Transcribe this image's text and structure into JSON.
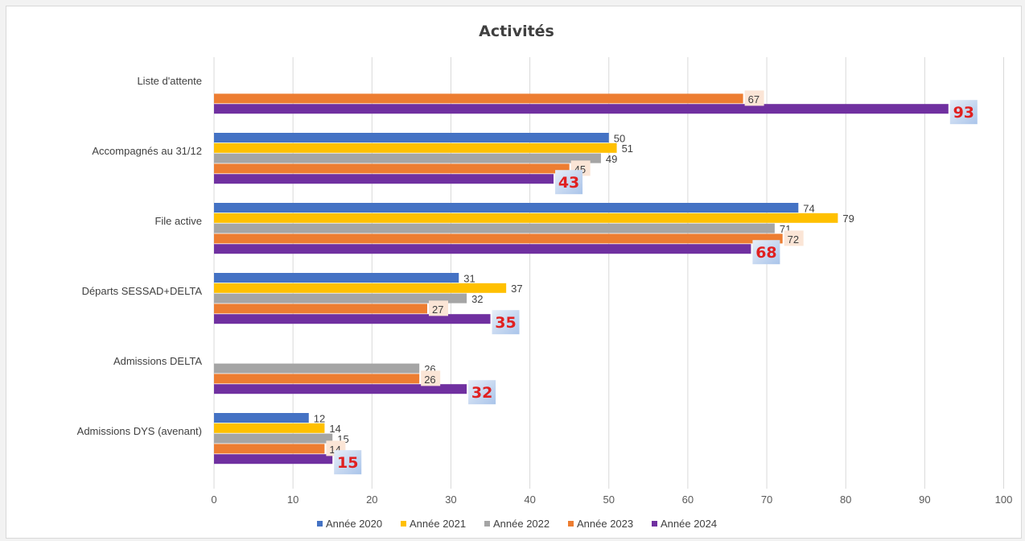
{
  "chart_data": {
    "type": "bar",
    "orientation": "horizontal",
    "title": "Activités",
    "categories": [
      "Liste d'attente",
      "Accompagnés au 31/12",
      "File active",
      "Départs SESSAD+DELTA",
      "Admissions DELTA",
      "Admissions DYS (avenant)"
    ],
    "series": [
      {
        "name": "Année 2020",
        "color": "#4472c4",
        "values": [
          null,
          50,
          74,
          31,
          null,
          12
        ]
      },
      {
        "name": "Année 2021",
        "color": "#ffc000",
        "values": [
          null,
          51,
          79,
          37,
          null,
          14
        ]
      },
      {
        "name": "Année 2022",
        "color": "#a5a5a5",
        "values": [
          null,
          49,
          71,
          32,
          26,
          15
        ]
      },
      {
        "name": "Année 2023",
        "color": "#ed7d31",
        "values": [
          67,
          45,
          72,
          27,
          26,
          14
        ]
      },
      {
        "name": "Année 2024",
        "color": "#7030a0",
        "values": [
          93,
          43,
          68,
          35,
          32,
          15
        ]
      }
    ],
    "xlim": [
      0,
      100
    ],
    "xticks": [
      0,
      10,
      20,
      30,
      40,
      50,
      60,
      70,
      80,
      90,
      100
    ],
    "grid": true,
    "legend_position": "bottom",
    "highlighted_series": "Année 2024"
  }
}
